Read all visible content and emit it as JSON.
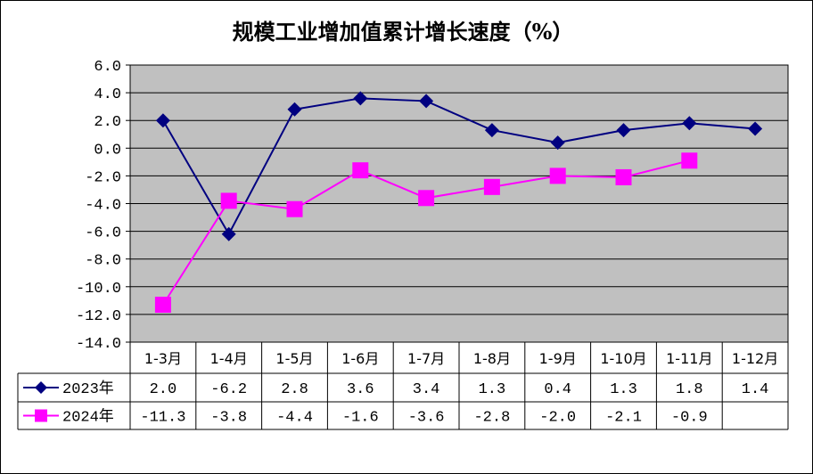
{
  "chart_data": {
    "type": "line",
    "title": "规模工业增加值累计增长速度（%）",
    "categories": [
      "1-3月",
      "1-4月",
      "1-5月",
      "1-6月",
      "1-7月",
      "1-8月",
      "1-9月",
      "1-10月",
      "1-11月",
      "1-12月"
    ],
    "ylim": [
      -14.0,
      6.0
    ],
    "yticks": [
      "6.0",
      "4.0",
      "2.0",
      "0.0",
      "-2.0",
      "-4.0",
      "-6.0",
      "-8.0",
      "-10.0",
      "-12.0",
      "-14.0"
    ],
    "grid": true,
    "plot_background": "#c0c0c0",
    "legend_placement": "data-table",
    "series": [
      {
        "name": "2023年",
        "color": "#000080",
        "marker": "diamond",
        "values": [
          2.0,
          -6.2,
          2.8,
          3.6,
          3.4,
          1.3,
          0.4,
          1.3,
          1.8,
          1.4
        ],
        "labels": [
          "2.0",
          "-6.2",
          "2.8",
          "3.6",
          "3.4",
          "1.3",
          "0.4",
          "1.3",
          "1.8",
          "1.4"
        ]
      },
      {
        "name": "2024年",
        "color": "#ff00ff",
        "marker": "square",
        "values": [
          -11.3,
          -3.8,
          -4.4,
          -1.6,
          -3.6,
          -2.8,
          -2.0,
          -2.1,
          -0.9,
          null
        ],
        "labels": [
          "-11.3",
          "-3.8",
          "-4.4",
          "-1.6",
          "-3.6",
          "-2.8",
          "-2.0",
          "-2.1",
          "-0.9",
          ""
        ]
      }
    ]
  }
}
